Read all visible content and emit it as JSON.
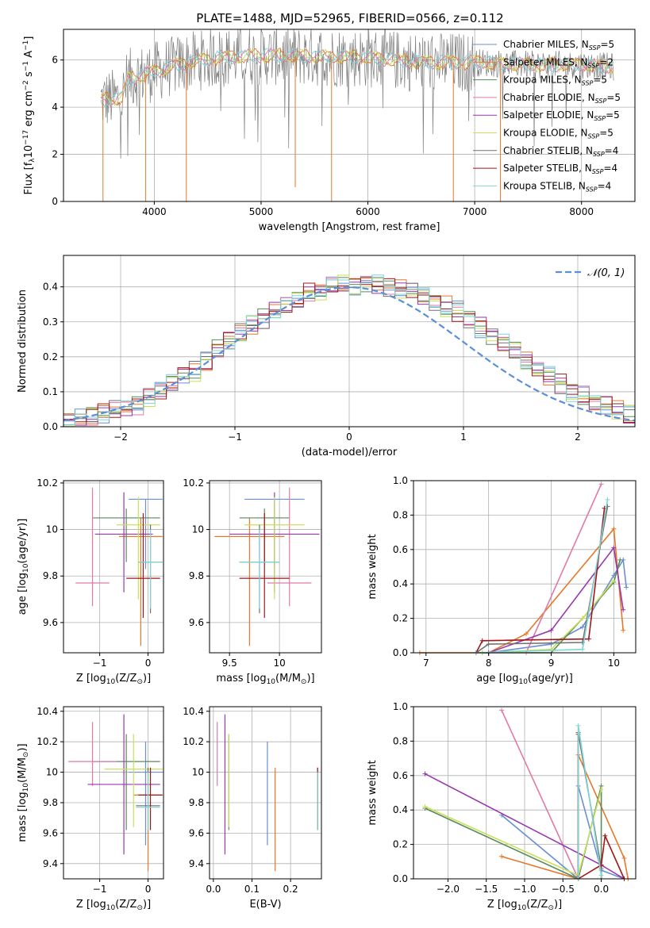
{
  "figure": {
    "title": "PLATE=1488, MJD=52965, FIBERID=0566, z=0.112"
  },
  "legend_colors": [
    "#4c72b0",
    "#dd8452",
    "#55a868",
    "#c44e52",
    "#8172b2",
    "#937860",
    "#da8bc3",
    "#8c8c8c",
    "#ccb974"
  ],
  "series_colors": [
    "#6a8ed6",
    "#e5782a",
    "#5a8a5a",
    "#e07aa8",
    "#9a36b0",
    "#c8e05a",
    "#707070",
    "#a01818",
    "#7fd4d4"
  ],
  "chart_data": [
    {
      "id": "spectrum",
      "type": "line",
      "xlabel": "wavelength [Angstrom, rest frame]",
      "ylabel_parts": {
        "prefix": "Flux [f",
        "sub": "λ",
        "mid": "10",
        "exp1": "−17",
        "mid2": " erg cm",
        "exp2": "−2",
        "mid3": " s",
        "exp3": "−1",
        "mid4": " A",
        "exp4": "−1",
        "suffix": "]"
      },
      "xlim": [
        3150,
        8500
      ],
      "ylim": [
        0,
        7.3
      ],
      "xticks": [
        4000,
        5000,
        6000,
        7000,
        8000
      ],
      "yticks": [
        0,
        2,
        4,
        6
      ],
      "legend": [
        {
          "name": "Chabrier MILES",
          "nssp": "5"
        },
        {
          "name": "Salpeter MILES",
          "nssp": "2"
        },
        {
          "name": "Kroupa MILES",
          "nssp": "5"
        },
        {
          "name": "Chabrier ELODIE",
          "nssp": "5"
        },
        {
          "name": "Salpeter ELODIE",
          "nssp": "5"
        },
        {
          "name": "Kroupa ELODIE",
          "nssp": "5"
        },
        {
          "name": "Chabrier STELIB",
          "nssp": "4"
        },
        {
          "name": "Salpeter STELIB",
          "nssp": "4"
        },
        {
          "name": "Kroupa STELIB",
          "nssp": "4"
        }
      ],
      "legend_nssp_label": {
        "pre": ", N",
        "sub": "SSP",
        "post": "="
      },
      "continuum": [
        [
          3500,
          4.3
        ],
        [
          3700,
          4.4
        ],
        [
          3750,
          5.2
        ],
        [
          4000,
          5.5
        ],
        [
          4300,
          5.9
        ],
        [
          4600,
          6.1
        ],
        [
          5000,
          6.2
        ],
        [
          5500,
          6.15
        ],
        [
          6000,
          6.1
        ],
        [
          6500,
          5.9
        ],
        [
          7000,
          5.9
        ],
        [
          7500,
          5.8
        ],
        [
          8000,
          5.8
        ],
        [
          8300,
          5.7
        ]
      ]
    },
    {
      "id": "residuals",
      "type": "histogram",
      "xlabel": "(data-model)/error",
      "ylabel": "Normed distribution",
      "xlim": [
        -2.5,
        2.5
      ],
      "ylim": [
        0,
        0.49
      ],
      "xticks": [
        -2,
        -1,
        0,
        1,
        2
      ],
      "yticks": [
        0.0,
        0.1,
        0.2,
        0.3,
        0.4
      ],
      "bin_width": 0.1,
      "legend": "𝒩(0, 1)",
      "hist_values": [
        0.02,
        0.025,
        0.03,
        0.04,
        0.05,
        0.055,
        0.065,
        0.085,
        0.105,
        0.125,
        0.15,
        0.16,
        0.185,
        0.22,
        0.245,
        0.27,
        0.29,
        0.31,
        0.33,
        0.35,
        0.365,
        0.38,
        0.39,
        0.4,
        0.405,
        0.4,
        0.41,
        0.41,
        0.4,
        0.395,
        0.39,
        0.375,
        0.36,
        0.345,
        0.33,
        0.31,
        0.285,
        0.265,
        0.24,
        0.215,
        0.19,
        0.165,
        0.145,
        0.12,
        0.1,
        0.085,
        0.07,
        0.06,
        0.05,
        0.04
      ]
    },
    {
      "id": "age-vs-z",
      "type": "errorbar",
      "xlabel": {
        "text": "Z [log",
        "sub": "10",
        "mid": "(Z/Z",
        "sub2": "⊙",
        "end": ")]"
      },
      "ylabel": {
        "text": "age  [log",
        "sub": "10",
        "end": "(age/yr)]"
      },
      "xlim": [
        -1.75,
        0.32
      ],
      "ylim": [
        9.47,
        10.21
      ],
      "xticks": [
        -1,
        0
      ],
      "yticks": [
        9.6,
        9.8,
        10.0,
        10.2
      ],
      "points": [
        {
          "x": -0.05,
          "xerr": 0.35,
          "y": 10.13,
          "ylo": 9.83,
          "yhi": 10.13,
          "c": 0
        },
        {
          "x": -0.15,
          "xerr": 0.45,
          "y": 9.97,
          "ylo": 9.5,
          "yhi": 10.05,
          "c": 1
        },
        {
          "x": -0.45,
          "xerr": 0.7,
          "y": 10.05,
          "ylo": 9.86,
          "yhi": 10.09,
          "c": 2
        },
        {
          "x": -1.15,
          "xerr": 0.35,
          "y": 9.77,
          "ylo": 9.67,
          "yhi": 10.18,
          "c": 3
        },
        {
          "x": -0.5,
          "xerr": 0.6,
          "y": 9.98,
          "ylo": 9.73,
          "yhi": 10.16,
          "c": 4
        },
        {
          "x": -0.2,
          "xerr": 0.45,
          "y": 10.02,
          "ylo": 9.7,
          "yhi": 10.14,
          "c": 5
        },
        {
          "x": 0.05,
          "xerr": 0.25,
          "y": 9.86,
          "ylo": 9.64,
          "yhi": 10.02,
          "c": 6
        },
        {
          "x": -0.1,
          "xerr": 0.35,
          "y": 9.79,
          "ylo": 9.62,
          "yhi": 10.07,
          "c": 7
        },
        {
          "x": 0.05,
          "xerr": 0.25,
          "y": 9.86,
          "ylo": 9.66,
          "yhi": 10.0,
          "c": 8
        }
      ]
    },
    {
      "id": "age-vs-mass",
      "type": "errorbar",
      "xlabel": {
        "text": "mass [log",
        "sub": "10",
        "mid": "(M/M",
        "sub2": "⊙",
        "end": ")]"
      },
      "ylabel": null,
      "xlim": [
        9.3,
        10.42
      ],
      "ylim": [
        9.47,
        10.21
      ],
      "xticks": [
        9.5,
        10.0
      ],
      "yticks": [
        9.6,
        9.8,
        10.0,
        10.2
      ],
      "points": [
        {
          "x": 9.95,
          "xerr": 0.3,
          "y": 10.13,
          "ylo": 9.83,
          "yhi": 10.13,
          "c": 0
        },
        {
          "x": 9.7,
          "xerr": 0.35,
          "y": 9.97,
          "ylo": 9.5,
          "yhi": 10.05,
          "c": 1
        },
        {
          "x": 9.85,
          "xerr": 0.25,
          "y": 10.05,
          "ylo": 9.86,
          "yhi": 10.09,
          "c": 2
        },
        {
          "x": 10.1,
          "xerr": 0.22,
          "y": 9.77,
          "ylo": 9.67,
          "yhi": 10.18,
          "c": 3
        },
        {
          "x": 9.95,
          "xerr": 0.45,
          "y": 9.98,
          "ylo": 9.73,
          "yhi": 10.16,
          "c": 4
        },
        {
          "x": 9.95,
          "xerr": 0.3,
          "y": 10.02,
          "ylo": 9.7,
          "yhi": 10.14,
          "c": 5
        },
        {
          "x": 9.8,
          "xerr": 0.2,
          "y": 9.86,
          "ylo": 9.64,
          "yhi": 10.02,
          "c": 6
        },
        {
          "x": 9.85,
          "xerr": 0.25,
          "y": 9.79,
          "ylo": 9.62,
          "yhi": 10.07,
          "c": 7
        },
        {
          "x": 9.8,
          "xerr": 0.2,
          "y": 9.86,
          "ylo": 9.66,
          "yhi": 10.0,
          "c": 8
        }
      ]
    },
    {
      "id": "massweight-vs-age",
      "type": "line",
      "xlabel": {
        "text": "age  [log",
        "sub": "10",
        "end": "(age/yr)]"
      },
      "ylabel": "mass weight",
      "xlim": [
        6.8,
        10.35
      ],
      "ylim": [
        0,
        1.0
      ],
      "xticks": [
        7,
        8,
        9,
        10
      ],
      "yticks": [
        0.0,
        0.2,
        0.4,
        0.6,
        0.8,
        1.0
      ],
      "series": [
        {
          "c": 0,
          "points": [
            [
              7.8,
              0.0
            ],
            [
              8.0,
              0.0
            ],
            [
              9.0,
              0.05
            ],
            [
              9.5,
              0.15
            ],
            [
              10.0,
              0.45
            ],
            [
              10.15,
              0.54
            ],
            [
              10.2,
              0.38
            ]
          ]
        },
        {
          "c": 1,
          "points": [
            [
              6.9,
              0.0
            ],
            [
              8.0,
              0.0
            ],
            [
              8.6,
              0.11
            ],
            [
              10.0,
              0.72
            ],
            [
              10.15,
              0.13
            ]
          ]
        },
        {
          "c": 2,
          "points": [
            [
              7.9,
              0.0
            ],
            [
              9.0,
              0.0
            ],
            [
              9.5,
              0.2
            ],
            [
              10.0,
              0.41
            ],
            [
              10.1,
              0.54
            ]
          ]
        },
        {
          "c": 3,
          "points": [
            [
              8.6,
              0.0
            ],
            [
              9.8,
              0.98
            ]
          ]
        },
        {
          "c": 4,
          "points": [
            [
              8.0,
              0.0
            ],
            [
              9.0,
              0.13
            ],
            [
              10.0,
              0.61
            ],
            [
              10.15,
              0.25
            ]
          ]
        },
        {
          "c": 5,
          "points": [
            [
              7.9,
              0.0
            ],
            [
              9.0,
              0.02
            ],
            [
              9.5,
              0.2
            ],
            [
              10.0,
              0.42
            ]
          ]
        },
        {
          "c": 6,
          "points": [
            [
              7.8,
              0.0
            ],
            [
              8.0,
              0.05
            ],
            [
              9.5,
              0.06
            ],
            [
              9.9,
              0.85
            ]
          ]
        },
        {
          "c": 7,
          "points": [
            [
              7.8,
              0.0
            ],
            [
              7.9,
              0.07
            ],
            [
              9.6,
              0.08
            ],
            [
              9.85,
              0.84
            ]
          ]
        },
        {
          "c": 8,
          "points": [
            [
              7.8,
              0.0
            ],
            [
              9.5,
              0.02
            ],
            [
              9.9,
              0.89
            ]
          ]
        }
      ]
    },
    {
      "id": "mass-vs-z",
      "type": "errorbar",
      "xlabel": {
        "text": "Z [log",
        "sub": "10",
        "mid": "(Z/Z",
        "sub2": "⊙",
        "end": ")]"
      },
      "ylabel": {
        "text": "mass [log",
        "sub": "10",
        "mid": "(M/M",
        "sub2": "⊙",
        "end": ")]"
      },
      "xlim": [
        -1.75,
        0.32
      ],
      "ylim": [
        9.3,
        10.43
      ],
      "xticks": [
        -1,
        0
      ],
      "yticks": [
        9.4,
        9.6,
        9.8,
        10.0,
        10.2,
        10.4
      ],
      "points": [
        {
          "x": -0.05,
          "xerr": 0.35,
          "y": 10.0,
          "ylo": 9.52,
          "yhi": 10.2,
          "c": 0
        },
        {
          "x": 0.0,
          "xerr": 0.3,
          "y": 9.85,
          "ylo": 9.35,
          "yhi": 10.03,
          "c": 1
        },
        {
          "x": -0.45,
          "xerr": 0.7,
          "y": 10.07,
          "ylo": 9.62,
          "yhi": 10.25,
          "c": 2
        },
        {
          "x": -1.15,
          "xerr": 0.5,
          "y": 10.07,
          "ylo": 9.91,
          "yhi": 10.33,
          "c": 3
        },
        {
          "x": -0.5,
          "xerr": 0.75,
          "y": 9.92,
          "ylo": 9.46,
          "yhi": 10.38,
          "c": 4
        },
        {
          "x": -0.3,
          "xerr": 0.6,
          "y": 10.02,
          "ylo": 9.64,
          "yhi": 10.25,
          "c": 5
        },
        {
          "x": 0.0,
          "xerr": 0.25,
          "y": 9.78,
          "ylo": 9.62,
          "yhi": 10.03,
          "c": 6
        },
        {
          "x": 0.05,
          "xerr": 0.25,
          "y": 9.85,
          "ylo": 9.62,
          "yhi": 10.03,
          "c": 7
        },
        {
          "x": 0.0,
          "xerr": 0.25,
          "y": 9.77,
          "ylo": 9.62,
          "yhi": 10.0,
          "c": 8
        }
      ]
    },
    {
      "id": "mass-vs-ebv",
      "type": "errorbar",
      "xlabel": "E(B-V)",
      "ylabel": null,
      "xlim": [
        -0.01,
        0.28
      ],
      "ylim": [
        9.3,
        10.43
      ],
      "xticks": [
        0.0,
        0.1,
        0.2
      ],
      "xtick_labels": [
        "0.0",
        "0.1",
        "0.2"
      ],
      "yticks": [
        9.4,
        9.6,
        9.8,
        10.0,
        10.2,
        10.4
      ],
      "points": [
        {
          "x": 0.14,
          "xerr": 0,
          "y": 10.0,
          "ylo": 9.52,
          "yhi": 10.2,
          "c": 0
        },
        {
          "x": 0.16,
          "xerr": 0,
          "y": 9.85,
          "ylo": 9.35,
          "yhi": 10.03,
          "c": 1
        },
        {
          "x": 0.04,
          "xerr": 0,
          "y": 10.07,
          "ylo": 9.62,
          "yhi": 10.25,
          "c": 2
        },
        {
          "x": 0.01,
          "xerr": 0,
          "y": 10.07,
          "ylo": 9.91,
          "yhi": 10.33,
          "c": 3
        },
        {
          "x": 0.03,
          "xerr": 0,
          "y": 9.92,
          "ylo": 9.46,
          "yhi": 10.38,
          "c": 4
        },
        {
          "x": 0.04,
          "xerr": 0,
          "y": 10.02,
          "ylo": 9.64,
          "yhi": 10.25,
          "c": 5
        },
        {
          "x": 0.27,
          "xerr": 0,
          "y": 9.78,
          "ylo": 9.62,
          "yhi": 10.03,
          "c": 6
        },
        {
          "x": 0.27,
          "xerr": 0,
          "y": 9.85,
          "ylo": 9.62,
          "yhi": 10.03,
          "c": 7
        },
        {
          "x": 0.27,
          "xerr": 0,
          "y": 9.77,
          "ylo": 9.62,
          "yhi": 10.0,
          "c": 8
        }
      ]
    },
    {
      "id": "massweight-vs-z",
      "type": "line",
      "xlabel": {
        "text": "Z [log",
        "sub": "10",
        "mid": "(Z/Z",
        "sub2": "⊙",
        "end": ")]"
      },
      "ylabel": "mass weight",
      "xlim": [
        -2.45,
        0.45
      ],
      "ylim": [
        0,
        1.0
      ],
      "xticks": [
        -2.0,
        -1.5,
        -1.0,
        -0.5,
        0.0
      ],
      "xtick_labels": [
        "−2.0",
        "−1.5",
        "−1.0",
        "−0.5",
        "0.0"
      ],
      "yticks": [
        0.0,
        0.2,
        0.4,
        0.6,
        0.8,
        1.0
      ],
      "series": [
        {
          "c": 0,
          "points": [
            [
              -1.3,
              0.37
            ],
            [
              -0.3,
              0.0
            ],
            [
              -0.3,
              0.54
            ],
            [
              0.0,
              0.05
            ],
            [
              0.3,
              0.0
            ]
          ]
        },
        {
          "c": 1,
          "points": [
            [
              -1.3,
              0.13
            ],
            [
              -0.3,
              0.0
            ],
            [
              -0.3,
              0.72
            ],
            [
              0.3,
              0.12
            ],
            [
              0.35,
              0.0
            ]
          ]
        },
        {
          "c": 2,
          "points": [
            [
              -2.3,
              0.41
            ],
            [
              -0.3,
              0.0
            ],
            [
              0.0,
              0.54
            ],
            [
              0.0,
              0.0
            ]
          ]
        },
        {
          "c": 3,
          "points": [
            [
              -1.3,
              0.98
            ],
            [
              -0.3,
              0.0
            ]
          ]
        },
        {
          "c": 4,
          "points": [
            [
              -2.3,
              0.61
            ],
            [
              0.0,
              0.08
            ],
            [
              0.3,
              0.0
            ]
          ]
        },
        {
          "c": 5,
          "points": [
            [
              -2.3,
              0.42
            ],
            [
              -0.3,
              0.02
            ],
            [
              0.0,
              0.52
            ]
          ]
        },
        {
          "c": 6,
          "points": [
            [
              -0.3,
              0.0
            ],
            [
              -0.3,
              0.85
            ],
            [
              0.0,
              0.06
            ]
          ]
        },
        {
          "c": 7,
          "points": [
            [
              -0.3,
              0.84
            ],
            [
              -0.3,
              0.0
            ],
            [
              0.0,
              0.08
            ],
            [
              0.05,
              0.25
            ],
            [
              0.3,
              0.0
            ]
          ]
        },
        {
          "c": 8,
          "points": [
            [
              -0.3,
              0.0
            ],
            [
              -0.3,
              0.89
            ],
            [
              0.0,
              0.02
            ]
          ]
        }
      ]
    }
  ]
}
